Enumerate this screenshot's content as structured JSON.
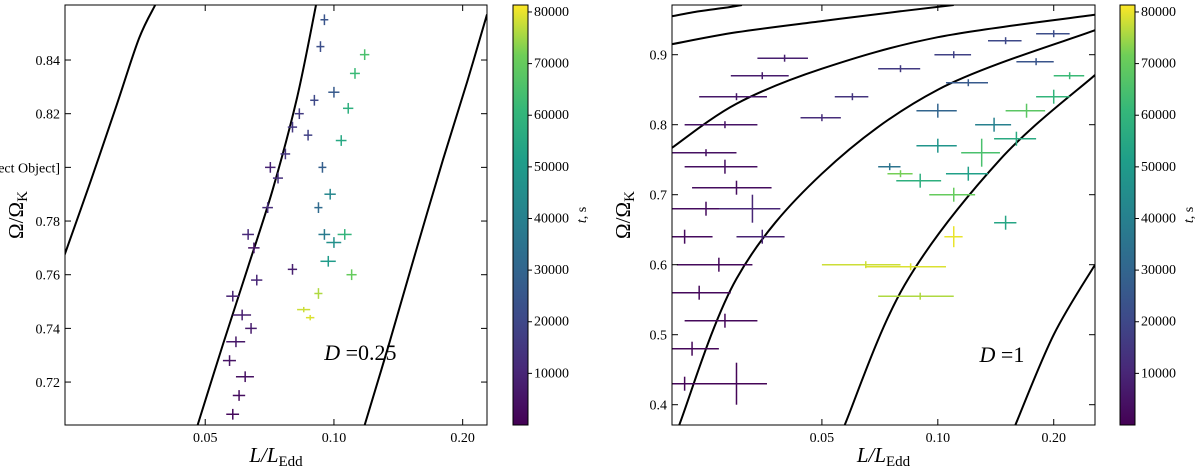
{
  "chart_data": [
    {
      "type": "scatter",
      "log_x": true,
      "xlabel": "L/L",
      "xlabel_sub": "Edd",
      "ylabel": "Ω/Ω",
      "ylabel_sub": "K",
      "annotation_symbol": "D",
      "annotation": " =0.25",
      "xlim": [
        0.0235,
        0.228
      ],
      "ylim": [
        0.704,
        0.8605
      ],
      "xticks": [
        0.05,
        {
          "value": 0.1,
          "label": "0.10"
        },
        {
          "value": 0.2,
          "label": "0.20"
        }
      ],
      "yticks": [
        0.72,
        0.74,
        0.76,
        0.78,
        {
          "value": 0.8,
          "label": "0.80"
        },
        0.82,
        0.84
      ],
      "clim": [
        0,
        81350
      ],
      "cticks": [
        10000,
        20000,
        30000,
        40000,
        50000,
        60000,
        70000,
        80000
      ],
      "clabel_symbol": "t",
      "clabel": ", s",
      "curves": [
        {
          "x": [
            0.0234,
            0.027,
            0.031,
            0.035,
            0.0382
          ],
          "y": [
            0.767,
            0.795,
            0.823,
            0.848,
            0.8605
          ]
        },
        {
          "x": [
            0.048,
            0.055,
            0.063,
            0.072,
            0.082,
            0.0908
          ],
          "y": [
            0.704,
            0.734,
            0.763,
            0.792,
            0.826,
            0.8605
          ]
        },
        {
          "x": [
            0.118,
            0.135,
            0.155,
            0.18,
            0.205,
            0.228
          ],
          "y": [
            0.704,
            0.735,
            0.768,
            0.803,
            0.832,
            0.857
          ]
        }
      ],
      "x": [
        0.058,
        0.06,
        0.062,
        0.057,
        0.059,
        0.064,
        0.061,
        0.058,
        0.066,
        0.063,
        0.07,
        0.074,
        0.077,
        0.08,
        0.083,
        0.087,
        0.09,
        0.093,
        0.095,
        0.1,
        0.094,
        0.092,
        0.095,
        0.098,
        0.1,
        0.097,
        0.104,
        0.108,
        0.112,
        0.118,
        0.106,
        0.11,
        0.085,
        0.088,
        0.092,
        0.08,
        0.071,
        0.065
      ],
      "y": [
        0.708,
        0.715,
        0.722,
        0.728,
        0.735,
        0.74,
        0.745,
        0.752,
        0.758,
        0.775,
        0.785,
        0.796,
        0.805,
        0.815,
        0.82,
        0.812,
        0.825,
        0.845,
        0.855,
        0.828,
        0.8,
        0.785,
        0.775,
        0.79,
        0.772,
        0.765,
        0.81,
        0.822,
        0.835,
        0.842,
        0.775,
        0.76,
        0.747,
        0.744,
        0.753,
        0.762,
        0.8,
        0.77
      ],
      "xerr": [
        0.002,
        0.002,
        0.003,
        0.002,
        0.003,
        0.002,
        0.003,
        0.002,
        0.002,
        0.002,
        0.002,
        0.002,
        0.002,
        0.002,
        0.002,
        0.002,
        0.002,
        0.002,
        0.002,
        0.003,
        0.002,
        0.002,
        0.003,
        0.003,
        0.004,
        0.004,
        0.003,
        0.003,
        0.003,
        0.003,
        0.004,
        0.003,
        0.003,
        0.002,
        0.002,
        0.002,
        0.002,
        0.002
      ],
      "yerr": [
        0.002,
        0.002,
        0.002,
        0.002,
        0.002,
        0.002,
        0.002,
        0.002,
        0.002,
        0.002,
        0.002,
        0.002,
        0.002,
        0.002,
        0.002,
        0.002,
        0.002,
        0.002,
        0.002,
        0.002,
        0.002,
        0.002,
        0.002,
        0.002,
        0.002,
        0.002,
        0.002,
        0.002,
        0.002,
        0.002,
        0.002,
        0.002,
        0.001,
        0.001,
        0.002,
        0.002,
        0.002,
        0.002
      ],
      "t": [
        2000,
        3000,
        4000,
        5000,
        6000,
        7000,
        8000,
        9000,
        10000,
        11000,
        12000,
        13000,
        14000,
        15000,
        16000,
        18000,
        20000,
        22000,
        24000,
        26000,
        28000,
        32000,
        38000,
        42000,
        46000,
        50000,
        55000,
        58000,
        62000,
        65000,
        60000,
        70000,
        78000,
        79000,
        76000,
        8000,
        9000,
        5000
      ]
    },
    {
      "type": "scatter",
      "log_x": true,
      "xlabel": "L/L",
      "xlabel_sub": "Edd",
      "ylabel": "Ω/Ω",
      "ylabel_sub": "K",
      "annotation_symbol": "D",
      "annotation": " =1",
      "xlim": [
        0.0204,
        0.256
      ],
      "ylim": [
        0.371,
        0.971
      ],
      "xticks": [
        0.05,
        {
          "value": 0.1,
          "label": "0.10"
        },
        {
          "value": 0.2,
          "label": "0.20"
        }
      ],
      "yticks": [
        0.4,
        0.5,
        0.6,
        0.7,
        0.8,
        0.9
      ],
      "clim": [
        0,
        81350
      ],
      "cticks": [
        10000,
        20000,
        30000,
        40000,
        50000,
        60000,
        70000,
        80000
      ],
      "clabel_symbol": "t",
      "clabel": ", s",
      "curves": [
        {
          "x": [
            0.0204,
            0.024,
            0.028,
            0.031
          ],
          "y": [
            0.955,
            0.962,
            0.967,
            0.971
          ]
        },
        {
          "x": [
            0.0204,
            0.03,
            0.05,
            0.08,
            0.11
          ],
          "y": [
            0.915,
            0.932,
            0.948,
            0.962,
            0.971
          ]
        },
        {
          "x": [
            0.0204,
            0.03,
            0.05,
            0.1,
            0.256
          ],
          "y": [
            0.767,
            0.83,
            0.88,
            0.925,
            0.957
          ]
        },
        {
          "x": [
            0.0213,
            0.03,
            0.05,
            0.1,
            0.256
          ],
          "y": [
            0.371,
            0.58,
            0.73,
            0.85,
            0.935
          ]
        },
        {
          "x": [
            0.0573,
            0.082,
            0.145,
            0.256
          ],
          "y": [
            0.371,
            0.571,
            0.75,
            0.871
          ]
        },
        {
          "x": [
            0.159,
            0.2,
            0.256
          ],
          "y": [
            0.371,
            0.5,
            0.6
          ]
        }
      ],
      "x": [
        0.04,
        0.035,
        0.03,
        0.028,
        0.025,
        0.028,
        0.03,
        0.025,
        0.022,
        0.027,
        0.024,
        0.028,
        0.023,
        0.022,
        0.03,
        0.035,
        0.033,
        0.05,
        0.06,
        0.08,
        0.11,
        0.15,
        0.2,
        0.18,
        0.12,
        0.1,
        0.075,
        0.14,
        0.1,
        0.12,
        0.16,
        0.2,
        0.22,
        0.09,
        0.13,
        0.17,
        0.11,
        0.08,
        0.15,
        0.065,
        0.085,
        0.09,
        0.11
      ],
      "y": [
        0.895,
        0.87,
        0.84,
        0.8,
        0.76,
        0.74,
        0.71,
        0.68,
        0.64,
        0.6,
        0.56,
        0.52,
        0.48,
        0.43,
        0.43,
        0.64,
        0.68,
        0.81,
        0.84,
        0.88,
        0.9,
        0.92,
        0.93,
        0.89,
        0.86,
        0.82,
        0.74,
        0.8,
        0.77,
        0.73,
        0.78,
        0.84,
        0.87,
        0.72,
        0.76,
        0.82,
        0.7,
        0.73,
        0.66,
        0.6,
        0.597,
        0.555,
        0.64
      ],
      "xerr": [
        0.006,
        0.006,
        0.006,
        0.006,
        0.005,
        0.006,
        0.007,
        0.006,
        0.004,
        0.006,
        0.005,
        0.006,
        0.004,
        0.004,
        0.006,
        0.005,
        0.006,
        0.006,
        0.006,
        0.01,
        0.012,
        0.015,
        0.02,
        0.02,
        0.015,
        0.012,
        0.005,
        0.015,
        0.012,
        0.015,
        0.02,
        0.02,
        0.02,
        0.012,
        0.015,
        0.02,
        0.015,
        0.006,
        0.01,
        0.015,
        0.02,
        0.02,
        0.006
      ],
      "yerr": [
        0.005,
        0.005,
        0.005,
        0.005,
        0.005,
        0.01,
        0.01,
        0.01,
        0.01,
        0.01,
        0.01,
        0.01,
        0.01,
        0.01,
        0.03,
        0.01,
        0.02,
        0.005,
        0.005,
        0.005,
        0.005,
        0.005,
        0.005,
        0.005,
        0.005,
        0.01,
        0.005,
        0.01,
        0.01,
        0.01,
        0.01,
        0.01,
        0.005,
        0.01,
        0.02,
        0.01,
        0.01,
        0.005,
        0.01,
        0.005,
        0.005,
        0.005,
        0.015
      ],
      "t": [
        8000,
        7000,
        6000,
        5000,
        4000,
        3500,
        3000,
        2800,
        2500,
        2200,
        2000,
        1800,
        1500,
        1200,
        1000,
        9000,
        10000,
        12000,
        14000,
        16000,
        18000,
        20000,
        22000,
        24000,
        26000,
        30000,
        35000,
        40000,
        48000,
        52000,
        56000,
        60000,
        62000,
        58000,
        65000,
        68000,
        70000,
        72000,
        54000,
        78000,
        79000,
        76000,
        80000
      ]
    }
  ]
}
